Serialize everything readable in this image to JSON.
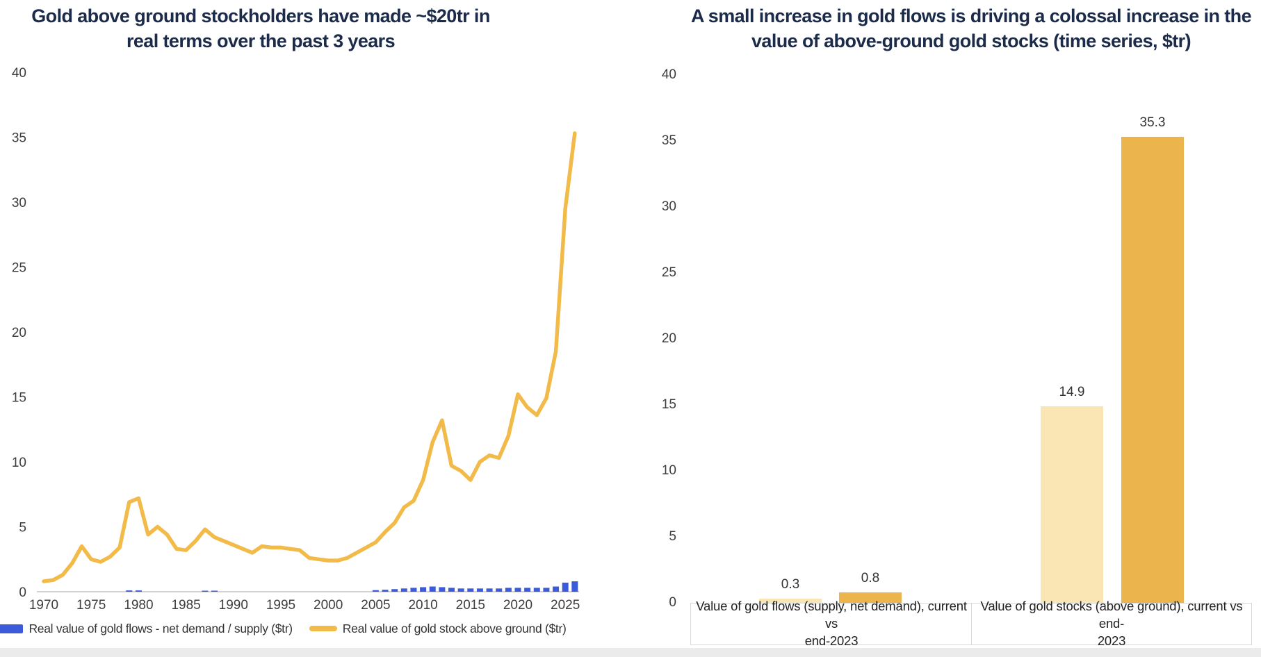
{
  "colors": {
    "title_navy": "#1c2b4a",
    "gold_line": "#f2bb49",
    "gold_bar": "#ecb44c",
    "cream_bar": "#f9e6b4",
    "flows_blue": "#3c5bdb",
    "axis_gray": "#d2d2d2",
    "tick_text": "#3d3d3d"
  },
  "chart_data": [
    {
      "type": "line",
      "title": "Gold above ground stockholders have made ~$20tr in real terms over the past 3 years",
      "title_lines": [
        "Gold above ground stockholders have made ~$20tr in",
        "real terms over the past 3 years"
      ],
      "x_start": 1970,
      "x": [
        1970,
        1971,
        1972,
        1973,
        1974,
        1975,
        1976,
        1977,
        1978,
        1979,
        1980,
        1981,
        1982,
        1983,
        1984,
        1985,
        1986,
        1987,
        1988,
        1989,
        1990,
        1991,
        1992,
        1993,
        1994,
        1995,
        1996,
        1997,
        1998,
        1999,
        2000,
        2001,
        2002,
        2003,
        2004,
        2005,
        2006,
        2007,
        2008,
        2009,
        2010,
        2011,
        2012,
        2013,
        2014,
        2015,
        2016,
        2017,
        2018,
        2019,
        2020,
        2021,
        2022,
        2023,
        2024,
        2025,
        2026
      ],
      "series": [
        {
          "name": "Real value of gold flows - net demand / supply ($tr)",
          "type": "bar",
          "color": "#3c5bdb",
          "values": [
            0,
            0,
            0,
            0,
            0,
            0,
            0,
            0,
            0,
            0.1,
            0.1,
            0,
            0,
            0,
            0,
            0,
            0,
            0.08,
            0.08,
            0,
            0,
            0,
            0,
            0,
            0,
            0,
            0,
            0,
            0,
            0,
            0,
            0,
            0,
            0,
            0,
            0.12,
            0.15,
            0.2,
            0.25,
            0.3,
            0.35,
            0.4,
            0.35,
            0.3,
            0.25,
            0.25,
            0.25,
            0.25,
            0.25,
            0.3,
            0.3,
            0.3,
            0.3,
            0.3,
            0.4,
            0.7,
            0.8
          ]
        },
        {
          "name": "Real value of gold stock above ground ($tr)",
          "type": "line",
          "color": "#f2bb49",
          "values": [
            0.8,
            0.9,
            1.3,
            2.2,
            3.5,
            2.5,
            2.3,
            2.7,
            3.4,
            6.9,
            7.2,
            4.4,
            5.0,
            4.4,
            3.3,
            3.2,
            3.9,
            4.8,
            4.2,
            3.9,
            3.6,
            3.3,
            3.0,
            3.5,
            3.4,
            3.4,
            3.3,
            3.2,
            2.6,
            2.5,
            2.4,
            2.4,
            2.6,
            3.0,
            3.4,
            3.8,
            4.6,
            5.3,
            6.5,
            7.0,
            8.6,
            11.5,
            13.2,
            9.7,
            9.3,
            8.6,
            10.0,
            10.5,
            10.3,
            12.0,
            15.2,
            14.2,
            13.6,
            14.9,
            18.5,
            29.5,
            35.3
          ]
        }
      ],
      "ylim": [
        0,
        40
      ],
      "yticks": [
        0,
        5,
        10,
        15,
        20,
        25,
        30,
        35,
        40
      ],
      "xticks": [
        1970,
        1975,
        1980,
        1985,
        1990,
        1995,
        2000,
        2005,
        2010,
        2015,
        2020,
        2025
      ],
      "grid": false,
      "legend_position": "bottom"
    },
    {
      "type": "bar",
      "title": "A small increase in gold flows is driving a colossal increase in the value of above-ground gold stocks (time series, $tr)",
      "title_lines": [
        "A small increase in gold flows is driving a colossal increase in the",
        "value of above-ground gold stocks (time series, $tr)"
      ],
      "ylim": [
        0,
        40
      ],
      "yticks": [
        0,
        5,
        10,
        15,
        20,
        25,
        30,
        35,
        40
      ],
      "grid": false,
      "groups": [
        {
          "label": "Value of gold flows (supply, net demand), current vs end-2023",
          "label_lines": [
            "Value of gold flows (supply, net demand), current vs",
            "end-2023"
          ],
          "bars": [
            {
              "name": "end-2023",
              "value": 0.3,
              "display": "0.3",
              "color": "#f9e6b4"
            },
            {
              "name": "current",
              "value": 0.8,
              "display": "0.8",
              "color": "#ecb44c"
            }
          ]
        },
        {
          "label": "Value of gold stocks (above ground), current vs end-2023",
          "label_lines": [
            "Value of gold stocks (above ground), current vs end-",
            "2023"
          ],
          "bars": [
            {
              "name": "end-2023",
              "value": 14.9,
              "display": "14.9",
              "color": "#f9e6b4"
            },
            {
              "name": "current",
              "value": 35.3,
              "display": "35.3",
              "color": "#ecb44c"
            }
          ]
        }
      ]
    }
  ]
}
